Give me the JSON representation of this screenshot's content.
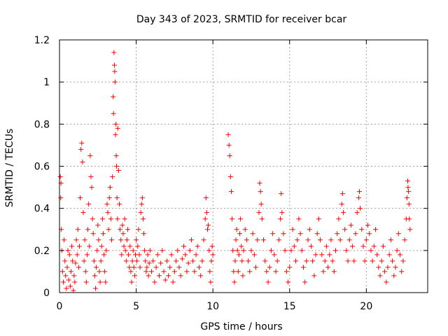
{
  "chart_data": {
    "type": "scatter",
    "title": "Day 343 of 2023, SRMTID for receiver bcar",
    "xlabel": "GPS time / hours",
    "ylabel": "SRMTID / TECUs",
    "xlim": [
      0,
      24
    ],
    "ylim": [
      0,
      1.2
    ],
    "xticks": [
      0,
      5,
      10,
      15,
      20
    ],
    "xtick_labels": [
      "0",
      "5",
      "10",
      "15",
      "20"
    ],
    "yticks": [
      0,
      0.2,
      0.4,
      0.6,
      0.8,
      1.0,
      1.2
    ],
    "ytick_labels": [
      "0",
      "0.2",
      "0.4",
      "0.6",
      "0.8",
      "1",
      "1.2"
    ],
    "grid": true,
    "marker": "+",
    "color": "#ff0000",
    "series": [
      {
        "name": "SRMTID",
        "points": [
          [
            0.05,
            0.55
          ],
          [
            0.08,
            0.45
          ],
          [
            0.1,
            0.52
          ],
          [
            0.12,
            0.3
          ],
          [
            0.15,
            0.2
          ],
          [
            0.2,
            0.1
          ],
          [
            0.25,
            0.05
          ],
          [
            0.3,
            0.25
          ],
          [
            0.35,
            0.15
          ],
          [
            0.4,
            0.08
          ],
          [
            0.45,
            0.02
          ],
          [
            0.5,
            0.12
          ],
          [
            0.55,
            0.2
          ],
          [
            0.6,
            0.06
          ],
          [
            0.65,
            0.18
          ],
          [
            0.7,
            0.03
          ],
          [
            0.75,
            0.1
          ],
          [
            0.8,
            0.22
          ],
          [
            0.85,
            0.15
          ],
          [
            0.9,
            0.01
          ],
          [
            0.95,
            0.08
          ],
          [
            1.0,
            0.05
          ],
          [
            1.05,
            0.14
          ],
          [
            1.1,
            0.25
          ],
          [
            1.15,
            0.18
          ],
          [
            1.2,
            0.3
          ],
          [
            1.25,
            0.12
          ],
          [
            1.3,
            0.22
          ],
          [
            1.35,
            0.45
          ],
          [
            1.4,
            0.68
          ],
          [
            1.45,
            0.71
          ],
          [
            1.5,
            0.62
          ],
          [
            1.55,
            0.38
          ],
          [
            1.6,
            0.15
          ],
          [
            1.65,
            0.25
          ],
          [
            1.7,
            0.1
          ],
          [
            1.75,
            0.05
          ],
          [
            1.8,
            0.18
          ],
          [
            1.85,
            0.3
          ],
          [
            1.9,
            0.42
          ],
          [
            1.95,
            0.22
          ],
          [
            2.0,
            0.65
          ],
          [
            2.05,
            0.55
          ],
          [
            2.1,
            0.5
          ],
          [
            2.15,
            0.35
          ],
          [
            2.2,
            0.28
          ],
          [
            2.25,
            0.15
          ],
          [
            2.3,
            0.08
          ],
          [
            2.35,
            0.02
          ],
          [
            2.4,
            0.12
          ],
          [
            2.45,
            0.2
          ],
          [
            2.5,
            0.32
          ],
          [
            2.55,
            0.25
          ],
          [
            2.6,
            0.1
          ],
          [
            2.65,
            0.05
          ],
          [
            2.7,
            0.15
          ],
          [
            2.75,
            0.22
          ],
          [
            2.8,
            0.35
          ],
          [
            2.85,
            0.28
          ],
          [
            2.9,
            0.18
          ],
          [
            2.95,
            0.1
          ],
          [
            3.0,
            0.05
          ],
          [
            3.05,
            0.2
          ],
          [
            3.1,
            0.42
          ],
          [
            3.15,
            0.38
          ],
          [
            3.2,
            0.3
          ],
          [
            3.25,
            0.45
          ],
          [
            3.3,
            0.5
          ],
          [
            3.35,
            0.35
          ],
          [
            3.4,
            0.25
          ],
          [
            3.45,
            0.55
          ],
          [
            3.5,
            0.93
          ],
          [
            3.52,
            0.85
          ],
          [
            3.55,
            1.14
          ],
          [
            3.58,
            1.08
          ],
          [
            3.6,
            1.05
          ],
          [
            3.62,
            1.0
          ],
          [
            3.65,
            0.75
          ],
          [
            3.68,
            0.8
          ],
          [
            3.7,
            0.65
          ],
          [
            3.72,
            0.6
          ],
          [
            3.75,
            0.45
          ],
          [
            3.78,
            0.35
          ],
          [
            3.8,
            0.78
          ],
          [
            3.85,
            0.58
          ],
          [
            3.9,
            0.42
          ],
          [
            3.95,
            0.3
          ],
          [
            4.0,
            0.25
          ],
          [
            4.05,
            0.18
          ],
          [
            4.1,
            0.32
          ],
          [
            4.15,
            0.28
          ],
          [
            4.2,
            0.22
          ],
          [
            4.25,
            0.35
          ],
          [
            4.3,
            0.2
          ],
          [
            4.35,
            0.15
          ],
          [
            4.4,
            0.25
          ],
          [
            4.45,
            0.3
          ],
          [
            4.5,
            0.18
          ],
          [
            4.55,
            0.12
          ],
          [
            4.6,
            0.22
          ],
          [
            4.65,
            0.1
          ],
          [
            4.7,
            0.05
          ],
          [
            4.75,
            0.15
          ],
          [
            4.8,
            0.2
          ],
          [
            4.85,
            0.12
          ],
          [
            4.9,
            0.08
          ],
          [
            4.95,
            0.18
          ],
          [
            5.0,
            0.25
          ],
          [
            5.05,
            0.15
          ],
          [
            5.1,
            0.22
          ],
          [
            5.15,
            0.3
          ],
          [
            5.2,
            0.18
          ],
          [
            5.25,
            0.12
          ],
          [
            5.3,
            0.38
          ],
          [
            5.35,
            0.42
          ],
          [
            5.4,
            0.45
          ],
          [
            5.45,
            0.35
          ],
          [
            5.5,
            0.28
          ],
          [
            5.55,
            0.2
          ],
          [
            5.6,
            0.15
          ],
          [
            5.65,
            0.1
          ],
          [
            5.7,
            0.12
          ],
          [
            5.75,
            0.18
          ],
          [
            5.8,
            0.08
          ],
          [
            5.85,
            0.14
          ],
          [
            5.9,
            0.2
          ],
          [
            6.0,
            0.1
          ],
          [
            6.1,
            0.15
          ],
          [
            6.2,
            0.05
          ],
          [
            6.3,
            0.12
          ],
          [
            6.4,
            0.18
          ],
          [
            6.5,
            0.08
          ],
          [
            6.6,
            0.14
          ],
          [
            6.7,
            0.2
          ],
          [
            6.8,
            0.1
          ],
          [
            6.9,
            0.06
          ],
          [
            7.0,
            0.15
          ],
          [
            7.1,
            0.08
          ],
          [
            7.2,
            0.12
          ],
          [
            7.3,
            0.18
          ],
          [
            7.4,
            0.05
          ],
          [
            7.5,
            0.1
          ],
          [
            7.6,
            0.15
          ],
          [
            7.7,
            0.2
          ],
          [
            7.8,
            0.12
          ],
          [
            7.9,
            0.08
          ],
          [
            8.0,
            0.16
          ],
          [
            8.1,
            0.22
          ],
          [
            8.2,
            0.18
          ],
          [
            8.3,
            0.1
          ],
          [
            8.4,
            0.14
          ],
          [
            8.5,
            0.2
          ],
          [
            8.6,
            0.25
          ],
          [
            8.7,
            0.15
          ],
          [
            8.8,
            0.1
          ],
          [
            8.9,
            0.18
          ],
          [
            9.0,
            0.22
          ],
          [
            9.1,
            0.12
          ],
          [
            9.2,
            0.08
          ],
          [
            9.3,
            0.15
          ],
          [
            9.4,
            0.25
          ],
          [
            9.5,
            0.35
          ],
          [
            9.55,
            0.45
          ],
          [
            9.6,
            0.38
          ],
          [
            9.65,
            0.3
          ],
          [
            9.7,
            0.32
          ],
          [
            9.75,
            0.2
          ],
          [
            9.8,
            0.1
          ],
          [
            9.85,
            0.05
          ],
          [
            9.9,
            0.15
          ],
          [
            9.95,
            0.22
          ],
          [
            10.0,
            0.18
          ],
          [
            11.0,
            0.75
          ],
          [
            11.05,
            0.7
          ],
          [
            11.1,
            0.65
          ],
          [
            11.15,
            0.55
          ],
          [
            11.2,
            0.48
          ],
          [
            11.25,
            0.35
          ],
          [
            11.3,
            0.2
          ],
          [
            11.35,
            0.1
          ],
          [
            11.4,
            0.05
          ],
          [
            11.45,
            0.15
          ],
          [
            11.5,
            0.25
          ],
          [
            11.55,
            0.3
          ],
          [
            11.6,
            0.2
          ],
          [
            11.65,
            0.1
          ],
          [
            11.7,
            0.18
          ],
          [
            11.75,
            0.28
          ],
          [
            11.8,
            0.35
          ],
          [
            11.85,
            0.22
          ],
          [
            11.9,
            0.15
          ],
          [
            11.95,
            0.08
          ],
          [
            12.0,
            0.2
          ],
          [
            12.1,
            0.3
          ],
          [
            12.2,
            0.25
          ],
          [
            12.3,
            0.15
          ],
          [
            12.4,
            0.1
          ],
          [
            12.5,
            0.2
          ],
          [
            12.6,
            0.28
          ],
          [
            12.7,
            0.18
          ],
          [
            12.8,
            0.12
          ],
          [
            12.9,
            0.25
          ],
          [
            13.0,
            0.38
          ],
          [
            13.05,
            0.52
          ],
          [
            13.1,
            0.48
          ],
          [
            13.15,
            0.42
          ],
          [
            13.2,
            0.35
          ],
          [
            13.3,
            0.25
          ],
          [
            13.4,
            0.15
          ],
          [
            13.5,
            0.1
          ],
          [
            13.6,
            0.05
          ],
          [
            13.7,
            0.12
          ],
          [
            13.8,
            0.2
          ],
          [
            13.9,
            0.28
          ],
          [
            14.0,
            0.18
          ],
          [
            14.1,
            0.1
          ],
          [
            14.2,
            0.15
          ],
          [
            14.3,
            0.25
          ],
          [
            14.4,
            0.35
          ],
          [
            14.45,
            0.47
          ],
          [
            14.5,
            0.38
          ],
          [
            14.6,
            0.28
          ],
          [
            14.7,
            0.2
          ],
          [
            14.8,
            0.1
          ],
          [
            14.9,
            0.05
          ],
          [
            15.0,
            0.12
          ],
          [
            15.1,
            0.2
          ],
          [
            15.2,
            0.3
          ],
          [
            15.3,
            0.22
          ],
          [
            15.4,
            0.15
          ],
          [
            15.5,
            0.25
          ],
          [
            15.6,
            0.35
          ],
          [
            15.7,
            0.28
          ],
          [
            15.8,
            0.2
          ],
          [
            15.9,
            0.12
          ],
          [
            16.0,
            0.05
          ],
          [
            16.1,
            0.15
          ],
          [
            16.2,
            0.25
          ],
          [
            16.3,
            0.3
          ],
          [
            16.4,
            0.22
          ],
          [
            16.5,
            0.15
          ],
          [
            16.6,
            0.08
          ],
          [
            16.7,
            0.18
          ],
          [
            16.8,
            0.28
          ],
          [
            16.9,
            0.35
          ],
          [
            17.0,
            0.25
          ],
          [
            17.1,
            0.18
          ],
          [
            17.2,
            0.1
          ],
          [
            17.3,
            0.15
          ],
          [
            17.4,
            0.22
          ],
          [
            17.5,
            0.12
          ],
          [
            17.6,
            0.18
          ],
          [
            17.7,
            0.25
          ],
          [
            17.8,
            0.15
          ],
          [
            17.9,
            0.1
          ],
          [
            18.0,
            0.2
          ],
          [
            18.1,
            0.28
          ],
          [
            18.2,
            0.35
          ],
          [
            18.3,
            0.25
          ],
          [
            18.4,
            0.42
          ],
          [
            18.45,
            0.47
          ],
          [
            18.5,
            0.38
          ],
          [
            18.6,
            0.3
          ],
          [
            18.7,
            0.2
          ],
          [
            18.8,
            0.15
          ],
          [
            18.9,
            0.25
          ],
          [
            19.0,
            0.32
          ],
          [
            19.1,
            0.22
          ],
          [
            19.2,
            0.15
          ],
          [
            19.3,
            0.28
          ],
          [
            19.4,
            0.38
          ],
          [
            19.5,
            0.45
          ],
          [
            19.55,
            0.48
          ],
          [
            19.6,
            0.4
          ],
          [
            19.7,
            0.3
          ],
          [
            19.8,
            0.22
          ],
          [
            19.9,
            0.15
          ],
          [
            20.0,
            0.25
          ],
          [
            20.1,
            0.32
          ],
          [
            20.2,
            0.28
          ],
          [
            20.3,
            0.2
          ],
          [
            20.4,
            0.15
          ],
          [
            20.5,
            0.22
          ],
          [
            20.6,
            0.3
          ],
          [
            20.7,
            0.18
          ],
          [
            20.8,
            0.12
          ],
          [
            20.9,
            0.08
          ],
          [
            21.0,
            0.15
          ],
          [
            21.1,
            0.22
          ],
          [
            21.2,
            0.1
          ],
          [
            21.3,
            0.05
          ],
          [
            21.4,
            0.12
          ],
          [
            21.5,
            0.18
          ],
          [
            21.6,
            0.25
          ],
          [
            21.7,
            0.15
          ],
          [
            21.8,
            0.08
          ],
          [
            21.9,
            0.12
          ],
          [
            22.0,
            0.2
          ],
          [
            22.1,
            0.28
          ],
          [
            22.2,
            0.18
          ],
          [
            22.3,
            0.1
          ],
          [
            22.4,
            0.15
          ],
          [
            22.5,
            0.25
          ],
          [
            22.6,
            0.35
          ],
          [
            22.65,
            0.45
          ],
          [
            22.7,
            0.53
          ],
          [
            22.72,
            0.5
          ],
          [
            22.75,
            0.48
          ],
          [
            22.78,
            0.42
          ],
          [
            22.8,
            0.35
          ],
          [
            22.85,
            0.3
          ]
        ]
      }
    ]
  }
}
